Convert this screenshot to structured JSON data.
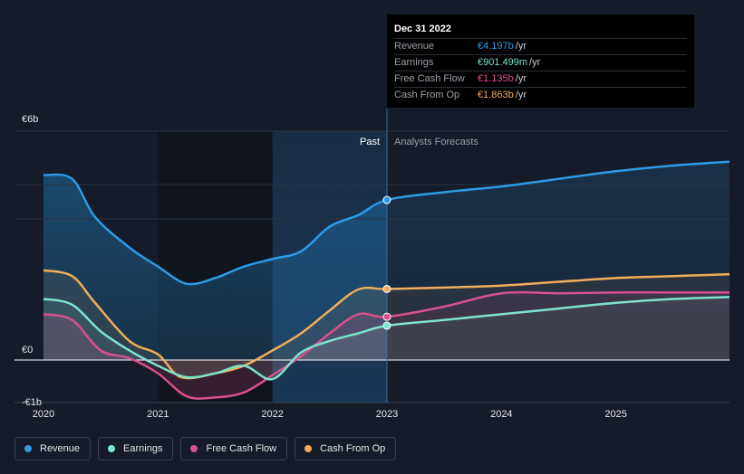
{
  "tooltip": {
    "date": "Dec 31 2022",
    "rows": [
      {
        "label": "Revenue",
        "value": "€4.197b",
        "unit": "/yr",
        "color": "#2d9be6"
      },
      {
        "label": "Earnings",
        "value": "€901.499m",
        "unit": "/yr",
        "color": "#7de3cc"
      },
      {
        "label": "Free Cash Flow",
        "value": "€1.135b",
        "unit": "/yr",
        "color": "#d9508c"
      },
      {
        "label": "Cash From Op",
        "value": "€1.863b",
        "unit": "/yr",
        "color": "#f0ad5a"
      }
    ]
  },
  "labels": {
    "past": "Past",
    "forecast": "Analysts Forecasts"
  },
  "legend": [
    {
      "label": "Revenue",
      "color": "#2d9be6"
    },
    {
      "label": "Earnings",
      "color": "#7de3cc"
    },
    {
      "label": "Free Cash Flow",
      "color": "#d9508c"
    },
    {
      "label": "Cash From Op",
      "color": "#f0ad5a"
    }
  ],
  "chart_data": {
    "type": "line",
    "title": "",
    "xlabel": "",
    "ylabel": "",
    "ylim": [
      -1,
      6
    ],
    "xlim": [
      2019.9,
      2026.0
    ],
    "y_tick_labels": [
      {
        "value": 6,
        "label": "€6b"
      },
      {
        "value": 0,
        "label": "€0"
      },
      {
        "value": -1,
        "label": "-€1b"
      }
    ],
    "x_ticks": [
      {
        "value": 2020,
        "label": "2020"
      },
      {
        "value": 2021,
        "label": "2021"
      },
      {
        "value": 2022,
        "label": "2022"
      },
      {
        "value": 2023,
        "label": "2023"
      },
      {
        "value": 2024,
        "label": "2024"
      },
      {
        "value": 2025,
        "label": "2025"
      }
    ],
    "past_end": 2023.0,
    "shaded_past_start": 2022.0,
    "dark_band": [
      2021.0,
      2022.0
    ],
    "series": [
      {
        "name": "Revenue",
        "color": "#2d9be6",
        "points": [
          [
            2020.0,
            4.85
          ],
          [
            2020.25,
            4.75
          ],
          [
            2020.45,
            3.75
          ],
          [
            2020.75,
            2.95
          ],
          [
            2021.0,
            2.45
          ],
          [
            2021.25,
            2.0
          ],
          [
            2021.5,
            2.15
          ],
          [
            2021.75,
            2.45
          ],
          [
            2022.0,
            2.65
          ],
          [
            2022.25,
            2.85
          ],
          [
            2022.5,
            3.5
          ],
          [
            2022.75,
            3.8
          ],
          [
            2023.0,
            4.197
          ],
          [
            2023.5,
            4.4
          ],
          [
            2024.0,
            4.55
          ],
          [
            2024.5,
            4.75
          ],
          [
            2025.0,
            4.95
          ],
          [
            2025.5,
            5.1
          ],
          [
            2026.0,
            5.2
          ]
        ]
      },
      {
        "name": "Cash From Op",
        "color": "#f0ad5a",
        "points": [
          [
            2020.0,
            2.35
          ],
          [
            2020.25,
            2.2
          ],
          [
            2020.45,
            1.5
          ],
          [
            2020.75,
            0.5
          ],
          [
            2021.0,
            0.15
          ],
          [
            2021.2,
            -0.45
          ],
          [
            2021.5,
            -0.35
          ],
          [
            2021.75,
            -0.15
          ],
          [
            2022.0,
            0.25
          ],
          [
            2022.25,
            0.7
          ],
          [
            2022.5,
            1.3
          ],
          [
            2022.75,
            1.85
          ],
          [
            2023.0,
            1.863
          ],
          [
            2023.5,
            1.9
          ],
          [
            2024.0,
            1.95
          ],
          [
            2024.5,
            2.05
          ],
          [
            2025.0,
            2.15
          ],
          [
            2025.5,
            2.2
          ],
          [
            2026.0,
            2.25
          ]
        ]
      },
      {
        "name": "Free Cash Flow",
        "color": "#d9508c",
        "points": [
          [
            2020.0,
            1.2
          ],
          [
            2020.25,
            1.05
          ],
          [
            2020.5,
            0.25
          ],
          [
            2020.75,
            0.05
          ],
          [
            2021.0,
            -0.35
          ],
          [
            2021.25,
            -0.95
          ],
          [
            2021.5,
            -0.98
          ],
          [
            2021.75,
            -0.85
          ],
          [
            2022.0,
            -0.4
          ],
          [
            2022.25,
            0.1
          ],
          [
            2022.5,
            0.7
          ],
          [
            2022.75,
            1.2
          ],
          [
            2023.0,
            1.135
          ],
          [
            2023.5,
            1.4
          ],
          [
            2024.0,
            1.75
          ],
          [
            2024.5,
            1.75
          ],
          [
            2025.0,
            1.77
          ],
          [
            2025.5,
            1.77
          ],
          [
            2026.0,
            1.77
          ]
        ]
      },
      {
        "name": "Earnings",
        "color": "#7de3cc",
        "points": [
          [
            2020.0,
            1.6
          ],
          [
            2020.25,
            1.45
          ],
          [
            2020.5,
            0.75
          ],
          [
            2020.75,
            0.25
          ],
          [
            2021.0,
            -0.15
          ],
          [
            2021.25,
            -0.45
          ],
          [
            2021.5,
            -0.35
          ],
          [
            2021.75,
            -0.15
          ],
          [
            2022.0,
            -0.5
          ],
          [
            2022.25,
            0.2
          ],
          [
            2022.5,
            0.5
          ],
          [
            2022.75,
            0.7
          ],
          [
            2023.0,
            0.901
          ],
          [
            2023.5,
            1.05
          ],
          [
            2024.0,
            1.2
          ],
          [
            2024.5,
            1.35
          ],
          [
            2025.0,
            1.5
          ],
          [
            2025.5,
            1.6
          ],
          [
            2026.0,
            1.65
          ]
        ]
      }
    ]
  }
}
